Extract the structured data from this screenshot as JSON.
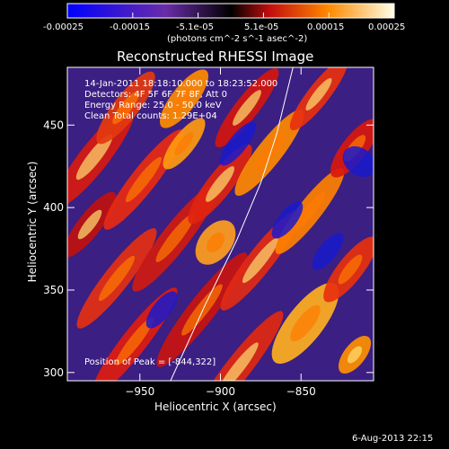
{
  "title": "Reconstructed RHESSI Image",
  "footer_date": "6-Aug-2013 22:15",
  "annotations": {
    "time_range": "14-Jan-2011 18:18:10.000 to 18:23:52.000",
    "detectors": "Detectors: 4F 5F 6F 7F 8F, Att 0",
    "energy": "Energy Range: 25.0 - 50.0 keV",
    "clean": "Clean     Total counts: 1.29E+04",
    "peak": "Position of Peak = [-844,322]"
  },
  "colorbar": {
    "range": [
      -0.00025,
      0.00025
    ],
    "ticks": [
      "-0.00025",
      "-0.00015",
      "-5.1e-05",
      "5.1e-05",
      "0.00015",
      "0.00025"
    ],
    "unit_label": "(photons cm^-2 s^-1 asec^-2)",
    "colors": [
      "#0000ff",
      "#5a2d9e",
      "#000000",
      "#d01010",
      "#ffa000",
      "#ffffe0"
    ]
  },
  "chart_data": {
    "type": "heatmap",
    "title": "Reconstructed RHESSI Image",
    "xlabel": "Heliocentric X (arcsec)",
    "ylabel": "Heliocentric Y (arcsec)",
    "xlim": [
      -995,
      -805
    ],
    "ylim": [
      295,
      485
    ],
    "x_ticks": [
      -950,
      -900,
      -850
    ],
    "y_ticks": [
      300,
      350,
      400,
      450
    ],
    "peak_position": [
      -844,
      322
    ],
    "limb_curve": {
      "x": [
        -931,
        -910,
        -890,
        -875,
        -865,
        -855
      ],
      "y": [
        295,
        340,
        380,
        415,
        445,
        485
      ]
    }
  }
}
